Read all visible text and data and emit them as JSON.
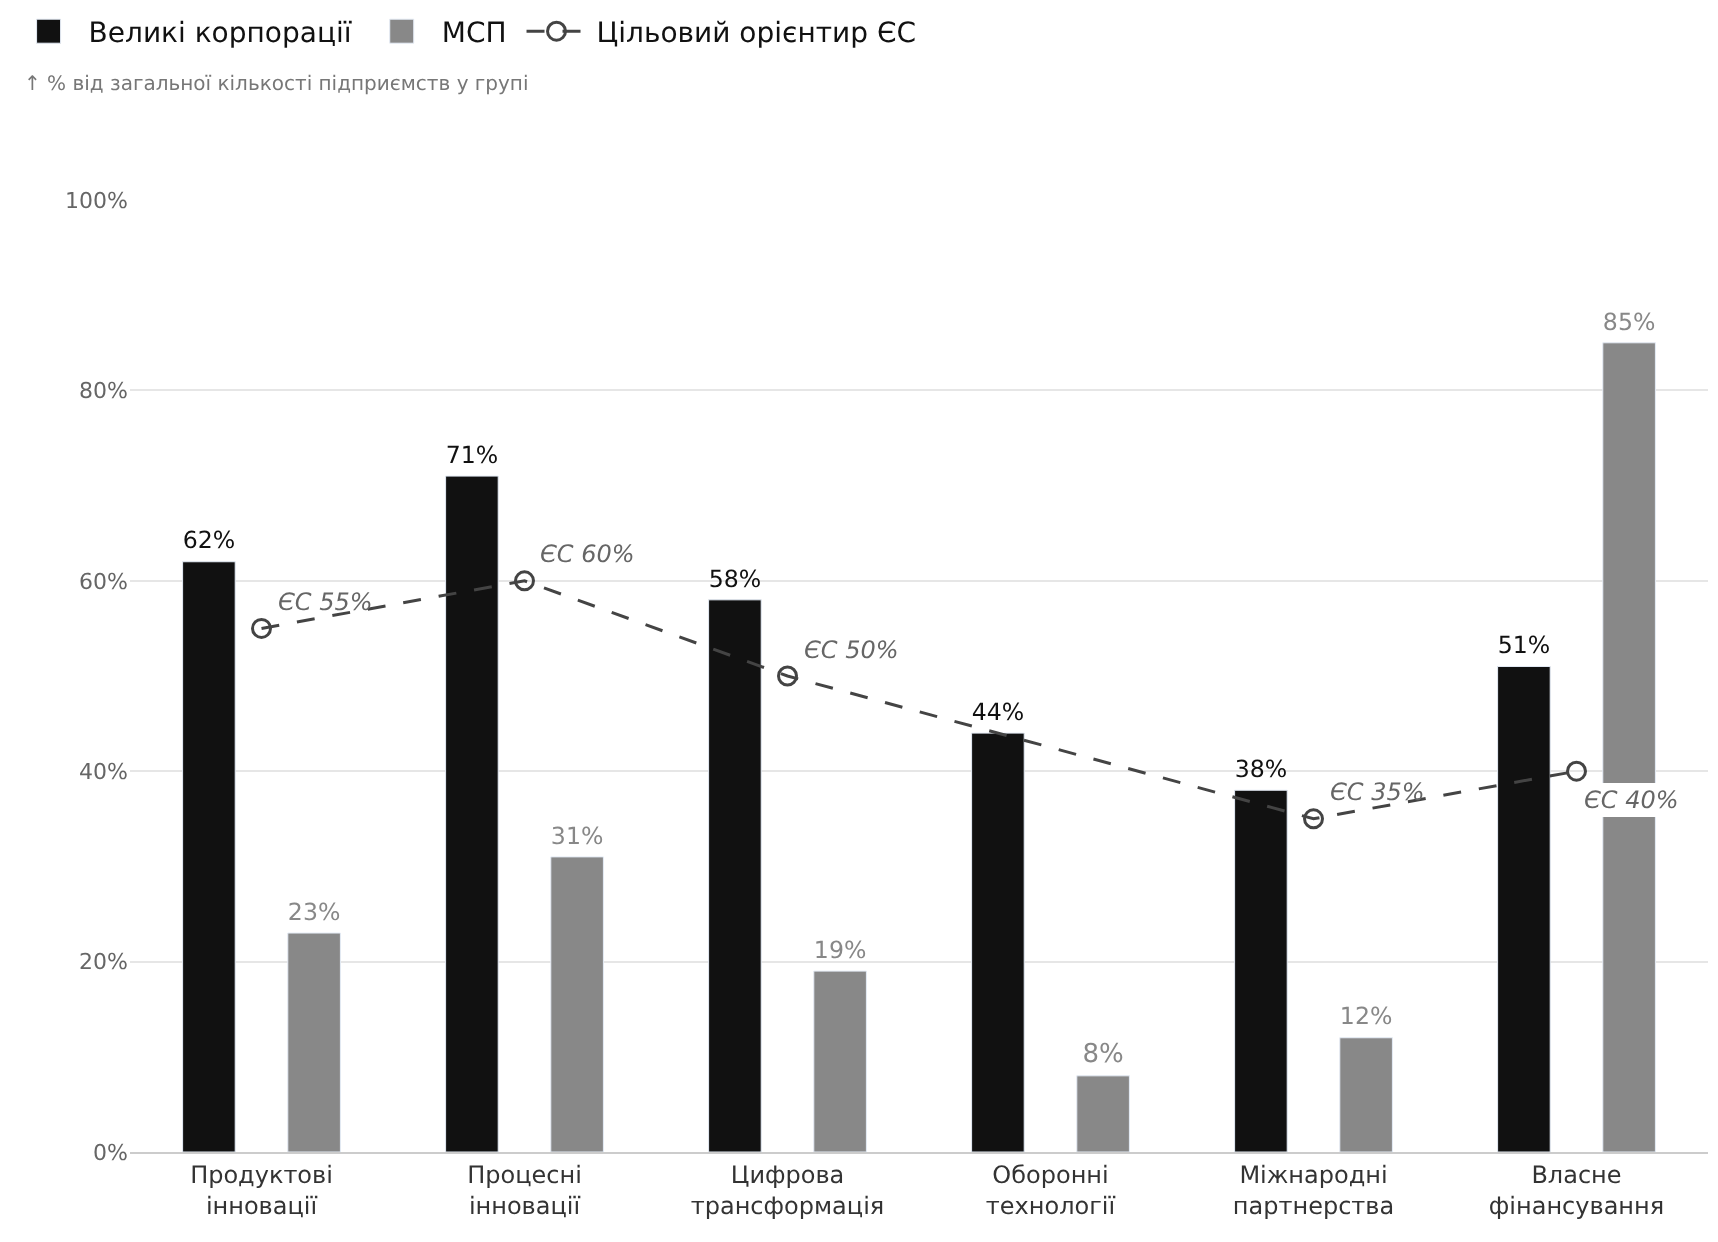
{
  "chart_data": {
    "type": "bar",
    "annotations": [
      "↑ % від загальної кількості підприємств у групі"
    ],
    "categories": [
      "Продуктові\nінновації",
      "Процесні\nінновації",
      "Цифрова\nтрансформація",
      "Оборонні\nтехнології",
      "Міжнародні\nпартнерства",
      "Власне\nфінансування"
    ],
    "series": [
      {
        "name": "Великі корпорації",
        "color": "#111111",
        "values": [
          62,
          71,
          58,
          44,
          38,
          51
        ],
        "value_labels": [
          "62%",
          "71%",
          "58%",
          "44%",
          "38%",
          "51%"
        ]
      },
      {
        "name": "МСП",
        "color": "#888888",
        "values": [
          23,
          31,
          19,
          8,
          12,
          85
        ],
        "value_labels": [
          "23%",
          "31%",
          "19%",
          "8%",
          "12%",
          "85%"
        ]
      },
      {
        "name": "Цільовий орієнтир ЄС",
        "type": "line",
        "color": "#444444",
        "line_style": "dashed",
        "marker": "circle",
        "values": [
          55,
          60,
          50,
          null,
          35,
          40
        ],
        "value_labels": [
          "ЄС 55%",
          "ЄС 60%",
          "ЄС 50%",
          null,
          "ЄС 35%",
          "ЄС 40%"
        ]
      }
    ],
    "ylim": [
      0,
      100
    ],
    "yticks": [
      {
        "value": 0,
        "label": "0%"
      },
      {
        "value": 20,
        "label": "20%"
      },
      {
        "value": 40,
        "label": "40%"
      },
      {
        "value": 60,
        "label": "60%"
      },
      {
        "value": 80,
        "label": "80%"
      },
      {
        "value": 100,
        "label": "100%"
      }
    ],
    "grid": "y",
    "legend": "top left"
  }
}
